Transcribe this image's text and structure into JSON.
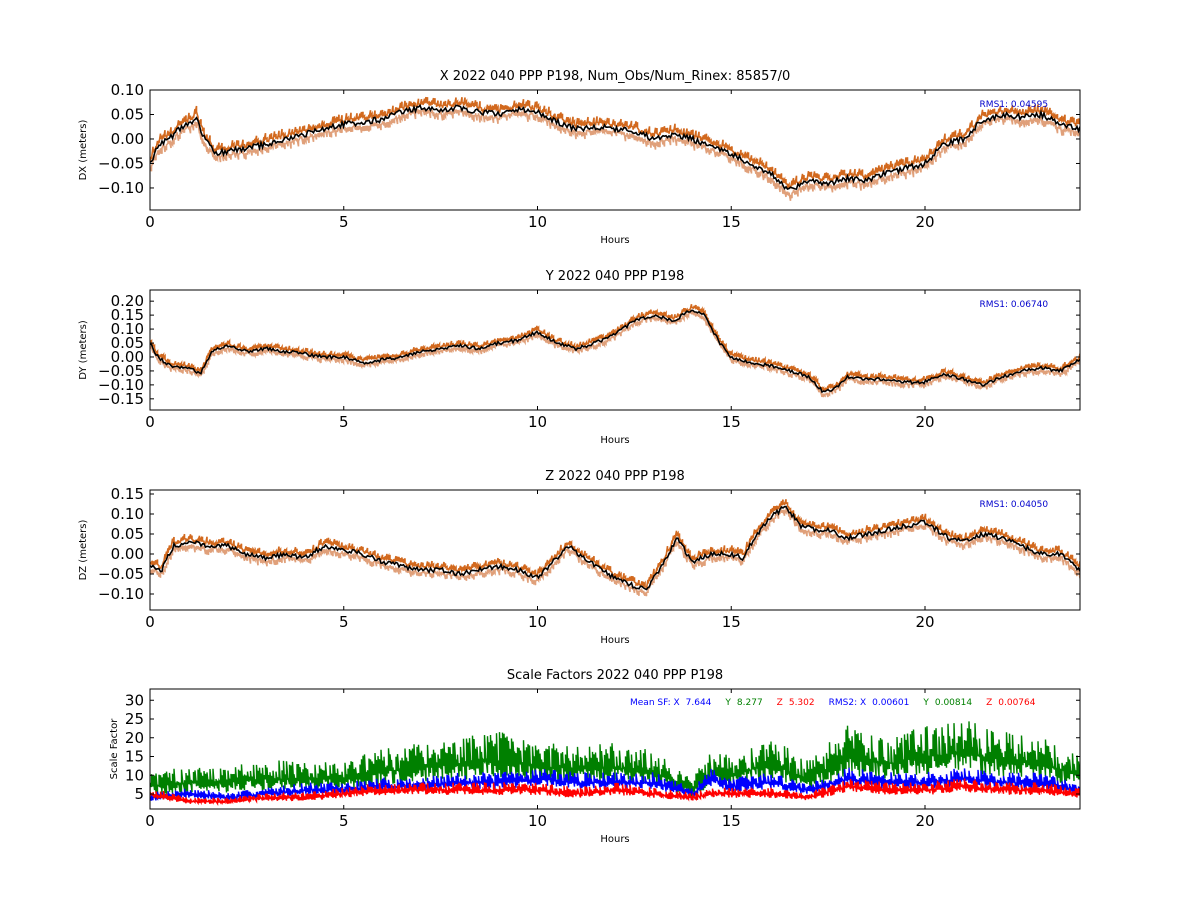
{
  "figure": {
    "background": "#ffffff"
  },
  "colors": {
    "envelope_upper": "#d2691e",
    "envelope_lower": "#e0a07a",
    "solution": "#000000",
    "rms_text": "#0000cc",
    "sf_x": "#0000ff",
    "sf_y": "#008000",
    "sf_z": "#ff0000"
  },
  "chart_data": [
    {
      "type": "line",
      "title": "X 2022 040 PPP  P198, Num_Obs/Num_Rinex: 85857/0",
      "xlabel": "Hours",
      "ylabel": "DX (meters)",
      "xlim": [
        0,
        24
      ],
      "ylim": [
        -0.145,
        0.1
      ],
      "xticks": [
        0,
        5,
        10,
        15,
        20
      ],
      "yticks": [
        -0.1,
        -0.05,
        0.0,
        0.05,
        0.1
      ],
      "ytick_labels": [
        "−0.10",
        "−0.05",
        "0.00",
        "0.05",
        "0.10"
      ],
      "envelope_offset": 0.025,
      "annotation": "RMS1:  0.04595",
      "series": [
        {
          "x": [
            0,
            0.25,
            0.5,
            0.75,
            1.0,
            1.2,
            1.4,
            1.7,
            2.0,
            2.5,
            3.0,
            3.5,
            4.0,
            4.5,
            5.0,
            5.5,
            6.0,
            6.5,
            7.0,
            7.5,
            8.0,
            8.5,
            9.0,
            9.5,
            10.0,
            10.5,
            11.0,
            11.5,
            12.0,
            12.5,
            13.0,
            13.5,
            14.0,
            14.5,
            15.0,
            15.5,
            16.0,
            16.5,
            17.0,
            17.5,
            18.0,
            18.5,
            19.0,
            19.5,
            20.0,
            20.5,
            21.0,
            21.5,
            22.0,
            22.5,
            23.0,
            23.5,
            24.0
          ],
          "values": [
            -0.05,
            -0.01,
            0.0,
            0.02,
            0.03,
            0.045,
            0.0,
            -0.03,
            -0.025,
            -0.02,
            -0.01,
            0.0,
            0.01,
            0.02,
            0.03,
            0.035,
            0.04,
            0.055,
            0.065,
            0.06,
            0.065,
            0.055,
            0.05,
            0.06,
            0.055,
            0.035,
            0.02,
            0.025,
            0.02,
            0.015,
            0.0,
            0.01,
            0.0,
            -0.015,
            -0.03,
            -0.05,
            -0.07,
            -0.105,
            -0.085,
            -0.09,
            -0.08,
            -0.085,
            -0.07,
            -0.06,
            -0.05,
            -0.01,
            0.0,
            0.04,
            0.05,
            0.045,
            0.05,
            0.03,
            0.02
          ]
        }
      ]
    },
    {
      "type": "line",
      "title": "Y 2022 040 PPP  P198",
      "xlabel": "Hours",
      "ylabel": "DY (meters)",
      "xlim": [
        0,
        24
      ],
      "ylim": [
        -0.19,
        0.24
      ],
      "xticks": [
        0,
        5,
        10,
        15,
        20
      ],
      "yticks": [
        -0.15,
        -0.1,
        -0.05,
        0.0,
        0.05,
        0.1,
        0.15,
        0.2
      ],
      "ytick_labels": [
        "−0.15",
        "−0.10",
        "−0.05",
        "0.00",
        "0.05",
        "0.10",
        "0.15",
        "0.20"
      ],
      "envelope_offset": 0.025,
      "annotation": "RMS1:  0.06740",
      "series": [
        {
          "x": [
            0,
            0.2,
            0.5,
            1.0,
            1.3,
            1.6,
            2.0,
            2.5,
            3.0,
            3.5,
            4.0,
            4.5,
            5.0,
            5.5,
            6.0,
            6.5,
            7.0,
            7.5,
            8.0,
            8.5,
            9.0,
            9.5,
            10.0,
            10.5,
            11.0,
            11.5,
            12.0,
            12.5,
            13.0,
            13.5,
            14.0,
            14.3,
            14.7,
            15.0,
            15.5,
            16.0,
            16.5,
            17.0,
            17.4,
            17.8,
            18.0,
            18.5,
            19.0,
            19.5,
            20.0,
            20.5,
            21.0,
            21.5,
            22.0,
            22.5,
            23.0,
            23.5,
            24.0
          ],
          "values": [
            0.05,
            0.0,
            -0.03,
            -0.04,
            -0.06,
            0.02,
            0.04,
            0.02,
            0.03,
            0.02,
            0.01,
            0.0,
            0.0,
            -0.02,
            -0.01,
            0.0,
            0.02,
            0.03,
            0.04,
            0.03,
            0.05,
            0.06,
            0.09,
            0.05,
            0.03,
            0.05,
            0.08,
            0.13,
            0.15,
            0.13,
            0.17,
            0.15,
            0.05,
            0.0,
            -0.02,
            -0.03,
            -0.05,
            -0.07,
            -0.13,
            -0.1,
            -0.07,
            -0.08,
            -0.08,
            -0.09,
            -0.09,
            -0.06,
            -0.08,
            -0.1,
            -0.07,
            -0.05,
            -0.04,
            -0.05,
            -0.01
          ]
        }
      ]
    },
    {
      "type": "line",
      "title": "Z 2022 040 PPP  P198",
      "xlabel": "Hours",
      "ylabel": "DZ (meters)",
      "xlim": [
        0,
        24
      ],
      "ylim": [
        -0.14,
        0.16
      ],
      "xticks": [
        0,
        5,
        10,
        15,
        20
      ],
      "yticks": [
        -0.1,
        -0.05,
        0.0,
        0.05,
        0.1,
        0.15
      ],
      "ytick_labels": [
        "−0.10",
        "−0.05",
        "0.00",
        "0.05",
        "0.10",
        "0.15"
      ],
      "envelope_offset": 0.025,
      "annotation": "RMS1:  0.04050",
      "series": [
        {
          "x": [
            0,
            0.3,
            0.6,
            1.0,
            1.5,
            2.0,
            2.5,
            3.0,
            3.5,
            4.0,
            4.5,
            5.0,
            5.5,
            6.0,
            6.5,
            7.0,
            7.5,
            8.0,
            8.5,
            9.0,
            9.5,
            10.0,
            10.5,
            10.8,
            11.2,
            11.5,
            12.0,
            12.5,
            12.8,
            13.2,
            13.6,
            14.0,
            14.5,
            15.0,
            15.3,
            15.6,
            16.0,
            16.4,
            16.8,
            17.2,
            17.5,
            18.0,
            18.5,
            19.0,
            19.5,
            20.0,
            20.3,
            20.6,
            21.0,
            21.5,
            22.0,
            22.5,
            23.0,
            23.5,
            24.0
          ],
          "values": [
            -0.03,
            -0.04,
            0.02,
            0.03,
            0.02,
            0.02,
            0.0,
            -0.01,
            0.0,
            -0.01,
            0.02,
            0.01,
            0.0,
            -0.02,
            -0.03,
            -0.04,
            -0.04,
            -0.05,
            -0.04,
            -0.03,
            -0.04,
            -0.06,
            -0.01,
            0.02,
            -0.01,
            -0.03,
            -0.06,
            -0.08,
            -0.09,
            -0.03,
            0.04,
            -0.02,
            0.0,
            0.0,
            -0.01,
            0.04,
            0.09,
            0.12,
            0.07,
            0.06,
            0.06,
            0.04,
            0.05,
            0.06,
            0.07,
            0.08,
            0.06,
            0.04,
            0.03,
            0.05,
            0.04,
            0.02,
            0.0,
            0.0,
            -0.04
          ]
        }
      ]
    },
    {
      "type": "line",
      "title": "Scale Factors 2022 040 PPP  P198",
      "xlabel": "Hours",
      "ylabel": "Scale Factor",
      "xlim": [
        0,
        24
      ],
      "ylim": [
        1,
        33
      ],
      "xticks": [
        0,
        5,
        10,
        15,
        20
      ],
      "yticks": [
        5,
        10,
        15,
        20,
        25,
        30
      ],
      "ytick_labels": [
        "5",
        "10",
        "15",
        "20",
        "25",
        "30"
      ],
      "annotation": {
        "mean_label": "Mean SF: X",
        "mean_x": "7.644",
        "mean_y_label": "Y",
        "mean_y": "8.277",
        "mean_z_label": "Z",
        "mean_z": "5.302",
        "rms_label": "RMS2: X",
        "rms_x": "0.00601",
        "rms_y_label": "Y",
        "rms_y": "0.00814",
        "rms_z_label": "Z",
        "rms_z": "0.00764"
      },
      "series": [
        {
          "name": "X",
          "x": [
            0,
            1,
            2,
            3,
            4,
            5,
            6,
            7,
            8,
            9,
            10,
            11,
            12,
            13,
            14,
            14.5,
            15,
            16,
            17,
            18,
            19,
            20,
            21,
            22,
            23,
            24
          ],
          "values": [
            4,
            5,
            4,
            5,
            6,
            6,
            7,
            7,
            8,
            8,
            9,
            8,
            8,
            8,
            5,
            9,
            7,
            8,
            6,
            9,
            8,
            8,
            9,
            8,
            8,
            6
          ]
        },
        {
          "name": "Y",
          "x": [
            0,
            1,
            2,
            3,
            4,
            5,
            6,
            7,
            8,
            9,
            10,
            11,
            12,
            13,
            14,
            14.5,
            15,
            16,
            17,
            18,
            19,
            20,
            21,
            22,
            23,
            24
          ],
          "values": [
            7,
            8,
            8,
            9,
            9,
            9,
            11,
            12,
            13,
            14,
            12,
            12,
            12,
            11,
            6,
            11,
            10,
            13,
            9,
            15,
            13,
            15,
            16,
            14,
            13,
            10
          ]
        },
        {
          "name": "Z",
          "x": [
            0,
            1,
            2,
            3,
            4,
            5,
            6,
            7,
            8,
            9,
            10,
            11,
            12,
            13,
            14,
            14.5,
            15,
            16,
            17,
            18,
            19,
            20,
            21,
            22,
            23,
            24
          ],
          "values": [
            5,
            3,
            3,
            4,
            4,
            5,
            6,
            6,
            6,
            6,
            6,
            5,
            6,
            5,
            4,
            5,
            5,
            5,
            4,
            7,
            6,
            6,
            7,
            6,
            6,
            5
          ]
        }
      ]
    }
  ]
}
